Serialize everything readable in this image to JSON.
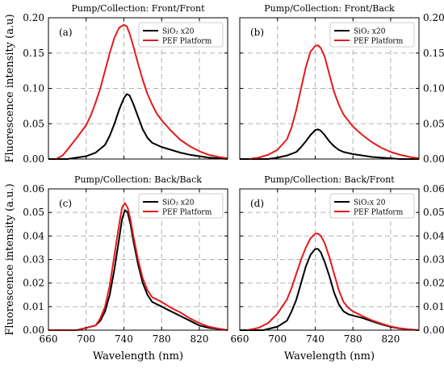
{
  "chart_data": [
    {
      "type": "line",
      "panel_label": "(a)",
      "title": "Pump/Collection: Front/Front",
      "xlabel": "",
      "ylabel": "Fluorescence intensity (a.u)",
      "xlim": [
        660,
        850
      ],
      "ylim": [
        0,
        0.2
      ],
      "xticks": [],
      "xtick_labels": [
        "",
        "",
        "",
        "",
        ""
      ],
      "yticks": [
        0,
        0.05,
        0.1,
        0.15,
        0.2
      ],
      "ytick_labels": [
        "0.00",
        "0.05",
        "0.10",
        "0.15",
        "0.20"
      ],
      "ytick_side": "left",
      "grid": true,
      "legend_position": "top-right",
      "series": [
        {
          "name": "SiO₂ x20",
          "color": "#000000",
          "x": [
            660,
            680,
            700,
            710,
            720,
            725,
            730,
            735,
            740,
            743,
            746,
            750,
            755,
            760,
            765,
            770,
            780,
            790,
            800,
            810,
            820,
            830,
            840,
            850
          ],
          "y": [
            0.0,
            0.0,
            0.004,
            0.009,
            0.02,
            0.033,
            0.05,
            0.07,
            0.086,
            0.092,
            0.09,
            0.078,
            0.06,
            0.042,
            0.03,
            0.023,
            0.017,
            0.013,
            0.009,
            0.006,
            0.004,
            0.002,
            0.001,
            0.0
          ]
        },
        {
          "name": "PEF Platform",
          "color": "#e41a1c",
          "x": [
            668,
            675,
            680,
            690,
            700,
            705,
            710,
            715,
            720,
            725,
            730,
            735,
            740,
            743,
            746,
            750,
            755,
            760,
            765,
            770,
            775,
            780,
            790,
            800,
            810,
            820,
            830,
            840,
            850
          ],
          "y": [
            0.0,
            0.005,
            0.013,
            0.03,
            0.048,
            0.062,
            0.08,
            0.1,
            0.125,
            0.15,
            0.172,
            0.186,
            0.19,
            0.188,
            0.178,
            0.16,
            0.135,
            0.112,
            0.092,
            0.077,
            0.064,
            0.055,
            0.04,
            0.027,
            0.018,
            0.011,
            0.006,
            0.003,
            0.001
          ]
        }
      ]
    },
    {
      "type": "line",
      "panel_label": "(b)",
      "title": "Pump/Collection: Front/Back",
      "xlabel": "",
      "ylabel": "",
      "xlim": [
        660,
        850
      ],
      "ylim": [
        0,
        0.2
      ],
      "xticks": [],
      "xtick_labels": [
        "",
        "",
        "",
        "",
        ""
      ],
      "yticks": [
        0,
        0.05,
        0.1,
        0.15,
        0.2
      ],
      "ytick_labels": [
        "0.00",
        "0.05",
        "0.10",
        "0.15",
        "0.20"
      ],
      "ytick_side": "right",
      "grid": true,
      "legend_position": "top-right",
      "series": [
        {
          "name": "SiO₂ x20",
          "color": "#000000",
          "x": [
            660,
            690,
            700,
            710,
            720,
            725,
            730,
            735,
            740,
            743,
            746,
            750,
            755,
            760,
            765,
            770,
            780,
            790,
            800,
            810,
            820,
            830,
            850
          ],
          "y": [
            0.0,
            0.0,
            0.002,
            0.005,
            0.01,
            0.017,
            0.025,
            0.034,
            0.041,
            0.042,
            0.04,
            0.034,
            0.025,
            0.018,
            0.013,
            0.01,
            0.007,
            0.005,
            0.003,
            0.002,
            0.001,
            0.0,
            0.0
          ]
        },
        {
          "name": "PEF Platform",
          "color": "#e41a1c",
          "x": [
            670,
            680,
            690,
            700,
            710,
            715,
            720,
            725,
            730,
            735,
            740,
            743,
            746,
            750,
            755,
            760,
            765,
            770,
            780,
            790,
            800,
            810,
            820,
            830,
            840,
            850
          ],
          "y": [
            0.0,
            0.002,
            0.006,
            0.013,
            0.028,
            0.045,
            0.07,
            0.1,
            0.13,
            0.152,
            0.16,
            0.161,
            0.157,
            0.145,
            0.12,
            0.095,
            0.077,
            0.063,
            0.046,
            0.034,
            0.024,
            0.016,
            0.01,
            0.006,
            0.003,
            0.001
          ]
        }
      ]
    },
    {
      "type": "line",
      "panel_label": "(c)",
      "title": "Pump/Collection: Back/Back",
      "xlabel": "Wavelength (nm)",
      "ylabel": "Fluorescence intensity (a.u.)",
      "xlim": [
        660,
        850
      ],
      "ylim": [
        0,
        0.06
      ],
      "xticks": [
        660,
        700,
        740,
        780,
        820
      ],
      "xtick_labels": [
        "660",
        "700",
        "740",
        "780",
        "820"
      ],
      "yticks": [
        0,
        0.01,
        0.02,
        0.03,
        0.04,
        0.05,
        0.06
      ],
      "ytick_labels": [
        "0.00",
        "0.01",
        "0.02",
        "0.03",
        "0.04",
        "0.05",
        "0.06"
      ],
      "ytick_side": "left",
      "grid": true,
      "legend_position": "top-right",
      "series": [
        {
          "name": "SiO₂ x20",
          "color": "#000000",
          "x": [
            660,
            690,
            700,
            710,
            715,
            720,
            725,
            730,
            735,
            738,
            741,
            744,
            747,
            750,
            755,
            760,
            765,
            770,
            775,
            780,
            790,
            800,
            810,
            820,
            830,
            840,
            850
          ],
          "y": [
            0.0,
            0.0,
            0.001,
            0.002,
            0.004,
            0.008,
            0.015,
            0.026,
            0.039,
            0.047,
            0.051,
            0.05,
            0.045,
            0.038,
            0.028,
            0.02,
            0.015,
            0.012,
            0.011,
            0.01,
            0.008,
            0.006,
            0.004,
            0.002,
            0.001,
            0.0005,
            0.0
          ]
        },
        {
          "name": "PEF Platform",
          "color": "#e41a1c",
          "x": [
            660,
            690,
            700,
            710,
            715,
            720,
            725,
            730,
            735,
            738,
            741,
            744,
            747,
            750,
            755,
            760,
            765,
            770,
            775,
            780,
            790,
            800,
            810,
            820,
            830,
            840,
            850
          ],
          "y": [
            0.0,
            0.0,
            0.001,
            0.002,
            0.005,
            0.01,
            0.019,
            0.032,
            0.045,
            0.052,
            0.054,
            0.052,
            0.047,
            0.04,
            0.03,
            0.022,
            0.017,
            0.014,
            0.013,
            0.012,
            0.0095,
            0.0075,
            0.005,
            0.003,
            0.0015,
            0.0007,
            0.0
          ]
        }
      ]
    },
    {
      "type": "line",
      "panel_label": "(d)",
      "title": "Pump/Collection: Back/Front",
      "xlabel": "Wavelength (nm)",
      "ylabel": "",
      "xlim": [
        660,
        850
      ],
      "ylim": [
        0,
        0.06
      ],
      "xticks": [
        660,
        700,
        740,
        780,
        820
      ],
      "xtick_labels": [
        "660",
        "700",
        "740",
        "780",
        "820"
      ],
      "yticks": [
        0,
        0.01,
        0.02,
        0.03,
        0.04,
        0.05,
        0.06
      ],
      "ytick_labels": [
        "0.00",
        "0.01",
        "0.02",
        "0.03",
        "0.04",
        "0.05",
        "0.06"
      ],
      "ytick_side": "right",
      "grid": true,
      "legend_position": "top-right",
      "series": [
        {
          "name": "SiO₂x 20",
          "color": "#000000",
          "x": [
            660,
            685,
            700,
            710,
            715,
            720,
            725,
            730,
            735,
            740,
            743,
            746,
            750,
            755,
            760,
            765,
            770,
            775,
            780,
            790,
            800,
            810,
            820,
            830,
            840,
            850
          ],
          "y": [
            0.0,
            0.0,
            0.0015,
            0.004,
            0.008,
            0.013,
            0.02,
            0.027,
            0.032,
            0.0345,
            0.0345,
            0.033,
            0.029,
            0.023,
            0.016,
            0.011,
            0.008,
            0.0068,
            0.0062,
            0.0052,
            0.0038,
            0.0025,
            0.0014,
            0.0007,
            0.0003,
            0.0
          ]
        },
        {
          "name": "PEF Platform",
          "color": "#e41a1c",
          "x": [
            668,
            680,
            690,
            700,
            710,
            715,
            720,
            725,
            730,
            735,
            740,
            743,
            746,
            750,
            755,
            760,
            765,
            770,
            775,
            780,
            790,
            800,
            810,
            820,
            830,
            840,
            850
          ],
          "y": [
            0.0,
            0.001,
            0.003,
            0.007,
            0.013,
            0.018,
            0.024,
            0.03,
            0.035,
            0.039,
            0.041,
            0.041,
            0.04,
            0.037,
            0.031,
            0.024,
            0.017,
            0.012,
            0.0095,
            0.008,
            0.006,
            0.0042,
            0.0028,
            0.0016,
            0.0008,
            0.0003,
            0.0
          ]
        }
      ]
    }
  ]
}
